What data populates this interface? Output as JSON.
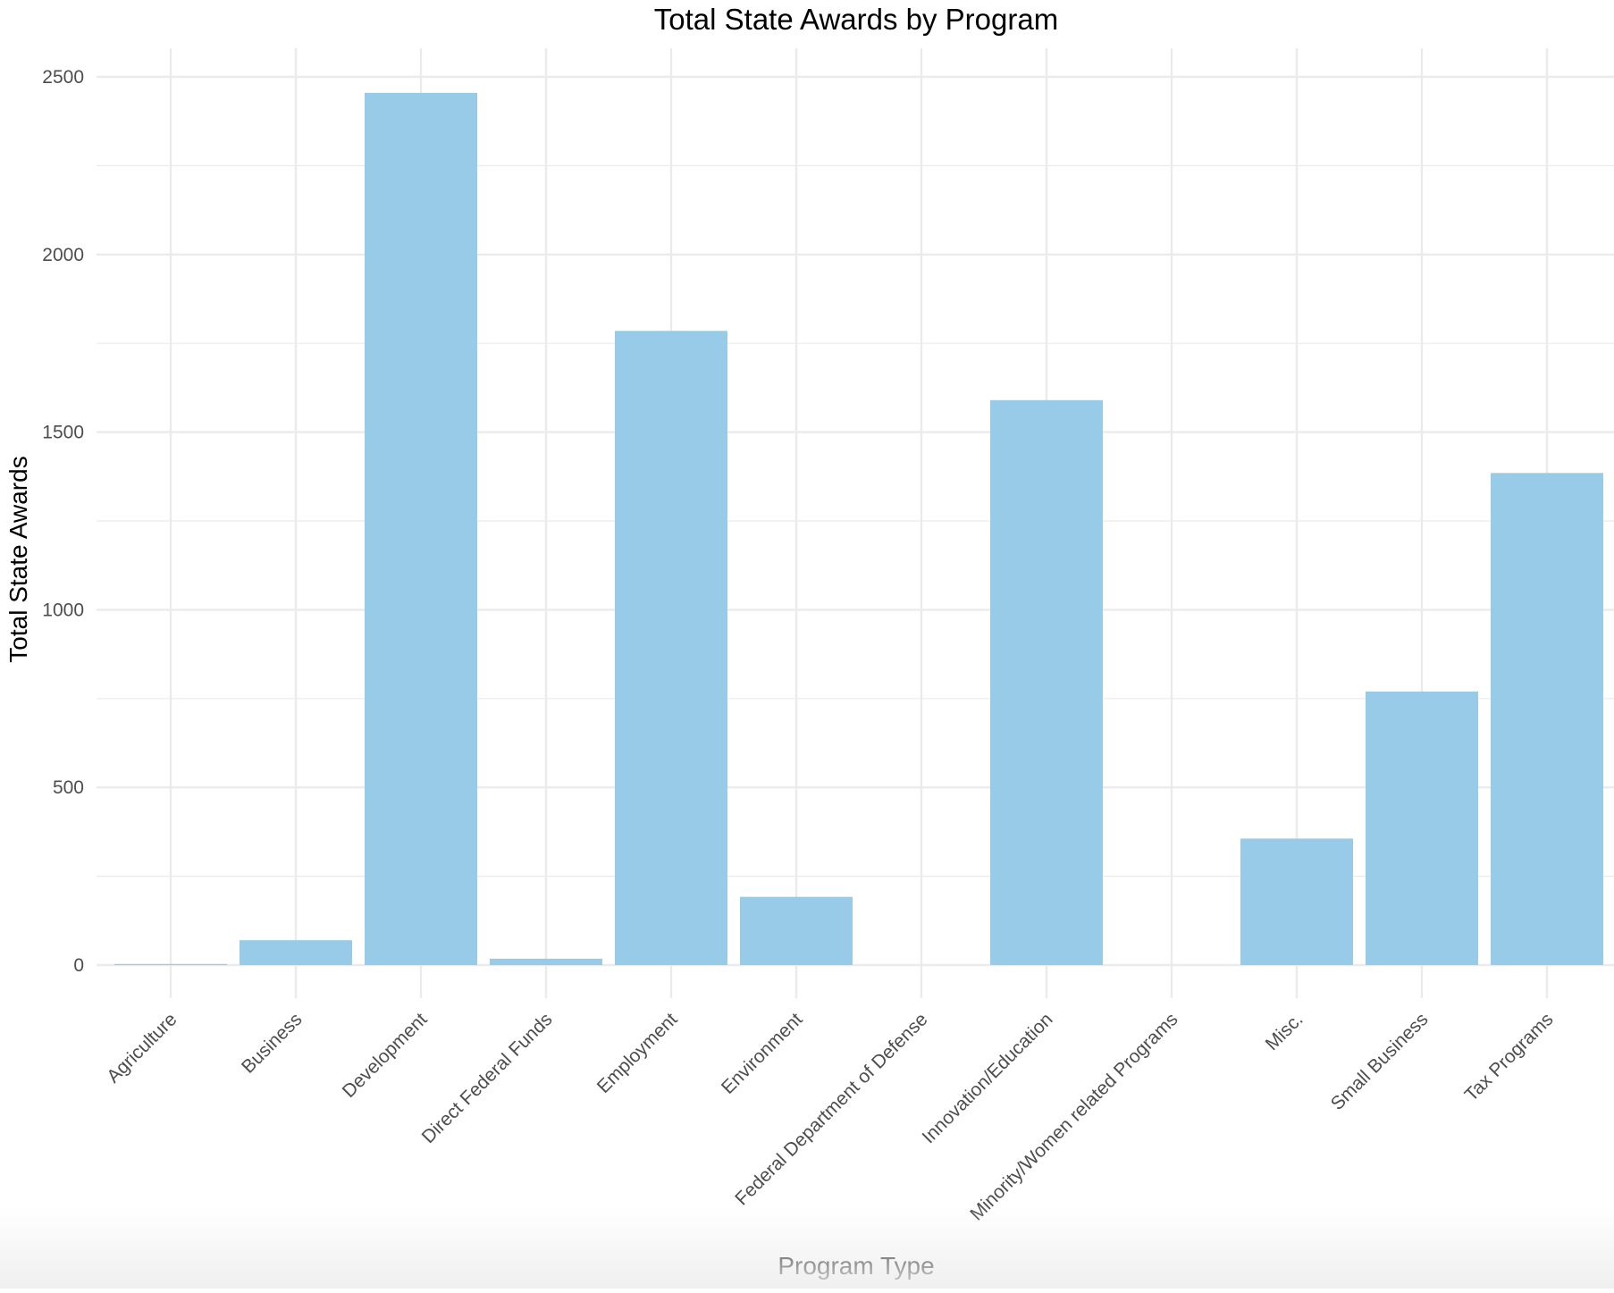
{
  "chart_data": {
    "type": "bar",
    "title": "Total State Awards by Program",
    "xlabel": "Program Type",
    "ylabel": "Total State Awards",
    "categories": [
      "Agriculture",
      "Business",
      "Development",
      "Direct Federal Funds",
      "Employment",
      "Environment",
      "Federal Department of Defense",
      "Innovation/Education",
      "Minority/Women related Programs",
      "Misc.",
      "Small Business",
      "Tax Programs"
    ],
    "values": [
      3,
      70,
      2455,
      18,
      1785,
      192,
      0,
      1590,
      0,
      356,
      770,
      1385
    ],
    "ylim": [
      -100,
      2610
    ],
    "yticks": [
      0,
      500,
      1000,
      1500,
      2000,
      2500
    ],
    "grid": true,
    "bar_color": "#97cbe7",
    "grid_color": "#ebebeb"
  }
}
